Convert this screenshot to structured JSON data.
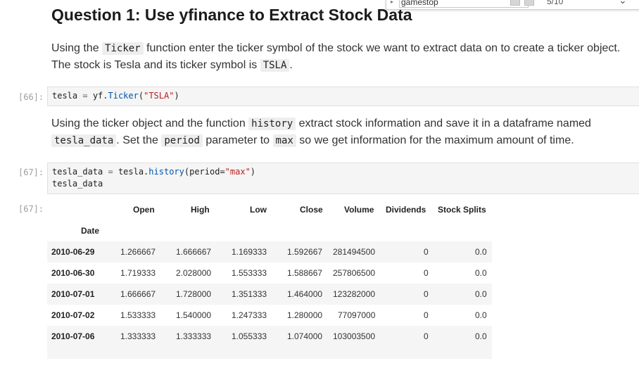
{
  "find_widget": {
    "query": "gamestop",
    "count": "5/10"
  },
  "heading": "Question 1: Use yfinance to Extract Stock Data",
  "para1": {
    "t1": "Using the ",
    "c1": "Ticker",
    "t2": " function enter the ticker symbol of the stock we want to extract data on to create a ticker object.",
    "t3": "The stock is Tesla and its ticker symbol is ",
    "c2": "TSLA",
    "t4": "."
  },
  "cell66": {
    "prompt": "[66]:",
    "var": "tesla",
    "op": " = ",
    "obj": "yf.",
    "fn": "Ticker",
    "open": "(",
    "arg": "\"TSLA\"",
    "close": ")"
  },
  "para2": {
    "t1": "Using the ticker object and the function ",
    "c1": "history",
    "t2": " extract stock information and save it in a dataframe named",
    "c2": "tesla_data",
    "t3": ". Set the ",
    "c3": "period",
    "t4": " parameter to ",
    "c4": "max",
    "t5": " so we get information for the maximum amount of time."
  },
  "cell67": {
    "prompt": "[67]:",
    "line1_var": "tesla_data",
    "line1_op": " = ",
    "line1_obj": "tesla.",
    "line1_fn": "history",
    "line1_open": "(period=",
    "line1_arg": "\"max\"",
    "line1_close": ")",
    "line2": "tesla_data"
  },
  "output67": {
    "prompt": "[67]:",
    "columns": [
      "Open",
      "High",
      "Low",
      "Close",
      "Volume",
      "Dividends",
      "Stock Splits"
    ],
    "index_name": "Date",
    "rows": [
      {
        "date": "2010-06-29",
        "open": "1.266667",
        "high": "1.666667",
        "low": "1.169333",
        "close": "1.592667",
        "volume": "281494500",
        "dividends": "0",
        "splits": "0.0"
      },
      {
        "date": "2010-06-30",
        "open": "1.719333",
        "high": "2.028000",
        "low": "1.553333",
        "close": "1.588667",
        "volume": "257806500",
        "dividends": "0",
        "splits": "0.0"
      },
      {
        "date": "2010-07-01",
        "open": "1.666667",
        "high": "1.728000",
        "low": "1.351333",
        "close": "1.464000",
        "volume": "123282000",
        "dividends": "0",
        "splits": "0.0"
      },
      {
        "date": "2010-07-02",
        "open": "1.533333",
        "high": "1.540000",
        "low": "1.247333",
        "close": "1.280000",
        "volume": "77097000",
        "dividends": "0",
        "splits": "0.0"
      },
      {
        "date": "2010-07-06",
        "open": "1.333333",
        "high": "1.333333",
        "low": "1.055333",
        "close": "1.074000",
        "volume": "103003500",
        "dividends": "0",
        "splits": "0.0"
      }
    ]
  }
}
